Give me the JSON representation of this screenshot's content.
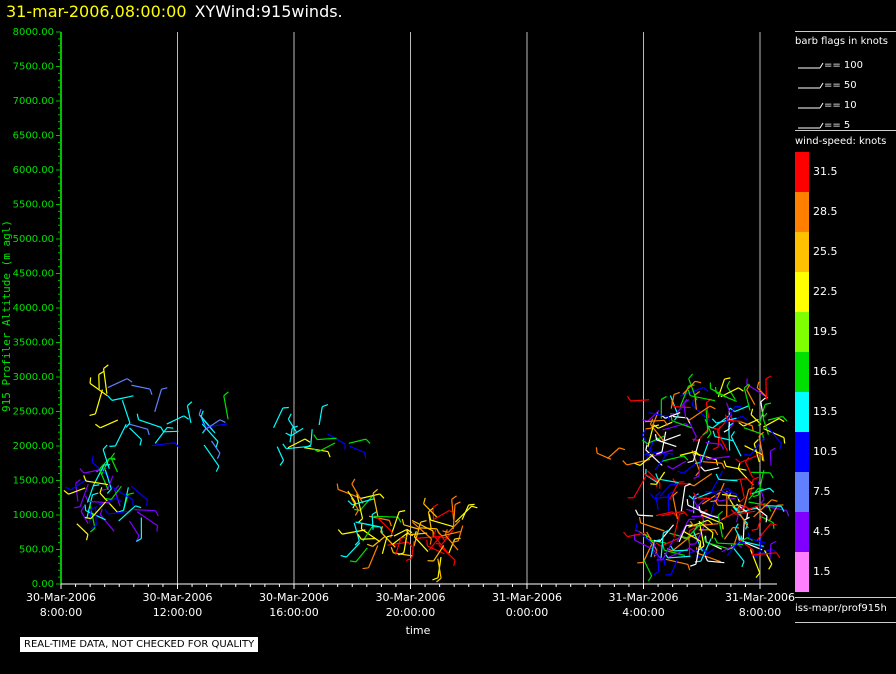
{
  "header": {
    "datetime": "31-mar-2006,08:00:00",
    "name": "XYWind:915winds."
  },
  "chart_data": {
    "type": "scatter",
    "title": "31-mar-2006,08:00:00  XYWind:915winds.",
    "xlabel": "time",
    "ylabel": "915 Profiler Altitude (m agl)",
    "ylim": [
      0,
      8000
    ],
    "x_range_hours": [
      0,
      24
    ],
    "y_ticks": [
      "0.00",
      "500.00",
      "1000.00",
      "1500.00",
      "2000.00",
      "2500.00",
      "3000.00",
      "3500.00",
      "4000.00",
      "4500.00",
      "5000.00",
      "5500.00",
      "6000.00",
      "6500.00",
      "7000.00",
      "7500.00",
      "8000.00"
    ],
    "x_ticks": [
      {
        "line1": "30-Mar-2006",
        "line2": "8:00:00",
        "hour": 0
      },
      {
        "line1": "30-Mar-2006",
        "line2": "12:00:00",
        "hour": 4
      },
      {
        "line1": "30-Mar-2006",
        "line2": "16:00:00",
        "hour": 8
      },
      {
        "line1": "30-Mar-2006",
        "line2": "20:00:00",
        "hour": 12
      },
      {
        "line1": "31-Mar-2006",
        "line2": "0:00:00",
        "hour": 16
      },
      {
        "line1": "31-Mar-2006",
        "line2": "4:00:00",
        "hour": 20
      },
      {
        "line1": "31-Mar-2006",
        "line2": "8:00:00",
        "hour": 24
      }
    ],
    "grid": true,
    "colorbar": {
      "title": "wind-speed: knots",
      "labels": [
        "31.5",
        "28.5",
        "25.5",
        "22.5",
        "19.5",
        "16.5",
        "13.5",
        "10.5",
        "7.5",
        "4.5",
        "1.5"
      ],
      "colors": [
        "#ff0000",
        "#ff8000",
        "#ffc000",
        "#ffff00",
        "#80ff00",
        "#00e000",
        "#00ffff",
        "#0000ff",
        "#6080ff",
        "#8000ff",
        "#ff80ff"
      ]
    },
    "barb_legend": {
      "title": "barb flags in knots",
      "entries": [
        "== 100",
        "== 50",
        "== 10",
        "== 5"
      ]
    },
    "clusters": [
      {
        "t0": 0.3,
        "t1": 2.8,
        "h0": 750,
        "h1": 1700,
        "n": 40,
        "colors": [
          "#0000ff",
          "#8000ff",
          "#00e000",
          "#ffff00",
          "#00ffff"
        ]
      },
      {
        "t0": 1.2,
        "t1": 2.5,
        "h0": 2100,
        "h1": 2900,
        "n": 12,
        "colors": [
          "#8000ff",
          "#6080ff",
          "#ffff00",
          "#00ffff"
        ]
      },
      {
        "t0": 3.1,
        "t1": 5.8,
        "h0": 1950,
        "h1": 2500,
        "n": 16,
        "colors": [
          "#6080ff",
          "#00ffff",
          "#0000ff",
          "#00e000"
        ]
      },
      {
        "t0": 6.9,
        "t1": 8.9,
        "h0": 1950,
        "h1": 2400,
        "n": 10,
        "colors": [
          "#00ffff",
          "#ffff00",
          "#6080ff"
        ]
      },
      {
        "t0": 9.1,
        "t1": 10.1,
        "h0": 1950,
        "h1": 2200,
        "n": 5,
        "colors": [
          "#00e000",
          "#0000ff"
        ]
      },
      {
        "t0": 9.8,
        "t1": 11.0,
        "h0": 500,
        "h1": 1400,
        "n": 18,
        "colors": [
          "#00e000",
          "#ffff00",
          "#00ffff",
          "#ff8000"
        ]
      },
      {
        "t0": 10.8,
        "t1": 13.8,
        "h0": 350,
        "h1": 1000,
        "n": 45,
        "colors": [
          "#ff8000",
          "#ffc000",
          "#ffff00",
          "#ff0000"
        ]
      },
      {
        "t0": 18.7,
        "t1": 18.9,
        "h0": 1700,
        "h1": 1900,
        "n": 2,
        "colors": [
          "#ff8000"
        ]
      },
      {
        "t0": 19.7,
        "t1": 20.4,
        "h0": 600,
        "h1": 800,
        "n": 3,
        "colors": [
          "#ff8000"
        ]
      },
      {
        "t0": 20.0,
        "t1": 24.4,
        "h0": 300,
        "h1": 2800,
        "n": 230,
        "colors": [
          "#ff0000",
          "#ffff00",
          "#00e000",
          "#0000ff",
          "#00ffff",
          "#8000ff",
          "#ff8000",
          "#ffffff"
        ]
      }
    ]
  },
  "legend_footer": "iss-mapr/prof915h",
  "notice": "REAL-TIME DATA, NOT CHECKED FOR QUALITY"
}
